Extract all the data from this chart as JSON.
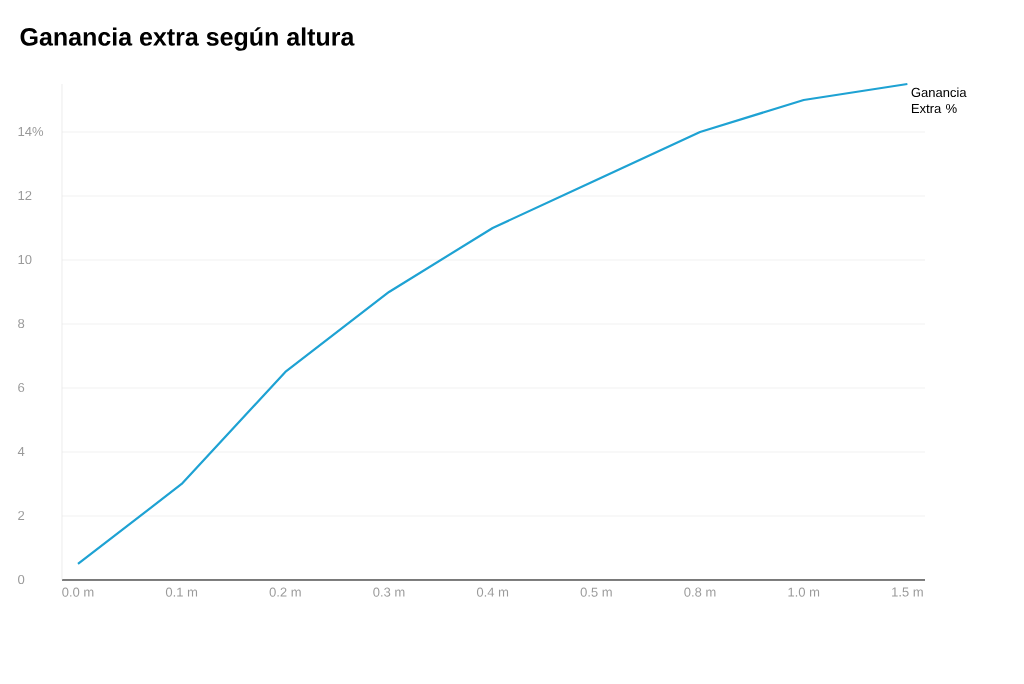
{
  "chart_data": {
    "type": "line",
    "title": "Ganancia extra según altura",
    "categories": [
      "0.0 m",
      "0.1 m",
      "0.2 m",
      "0.3 m",
      "0.4 m",
      "0.5 m",
      "0.8 m",
      "1.0 m",
      "1.5 m"
    ],
    "series": [
      {
        "name": "Ganancia Extra %",
        "color": "#1ea2d3",
        "values": [
          0.5,
          3,
          6.5,
          9,
          11,
          12.5,
          14,
          15,
          15.5
        ]
      }
    ],
    "ylim": [
      0,
      15.5
    ],
    "yticks": [
      0,
      2,
      4,
      6,
      8,
      10,
      12,
      {
        "value": 14,
        "label": "14%"
      }
    ],
    "grid": "y",
    "marker": "none",
    "line_style": "solid"
  }
}
